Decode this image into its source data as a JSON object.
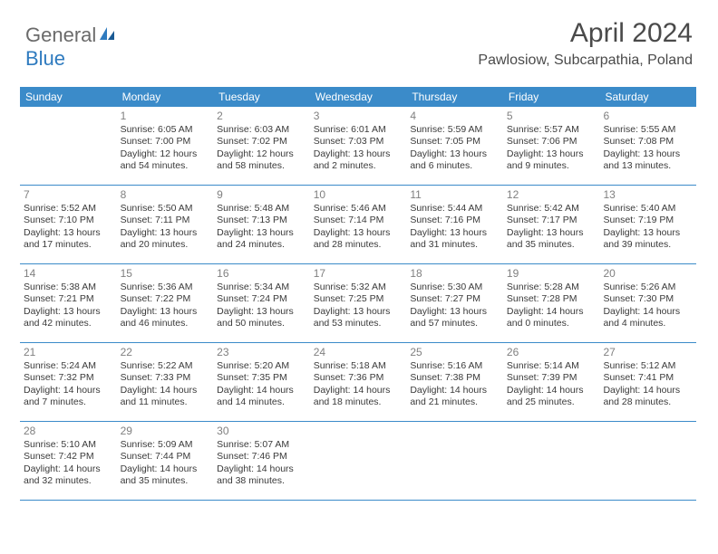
{
  "brand": {
    "word1": "General",
    "word2": "Blue"
  },
  "title": "April 2024",
  "location": "Pawlosiow, Subcarpathia, Poland",
  "colors": {
    "header_bg": "#3b8bc9",
    "header_fg": "#ffffff",
    "rule": "#3b8bc9",
    "text": "#3a3a3a",
    "daynum": "#808080",
    "brand_grey": "#6a6a6a",
    "brand_blue": "#2f7bbf",
    "page_bg": "#ffffff"
  },
  "dow": [
    "Sunday",
    "Monday",
    "Tuesday",
    "Wednesday",
    "Thursday",
    "Friday",
    "Saturday"
  ],
  "weeks": [
    [
      {
        "day": "",
        "lines": []
      },
      {
        "day": "1",
        "lines": [
          "Sunrise: 6:05 AM",
          "Sunset: 7:00 PM",
          "Daylight: 12 hours and 54 minutes."
        ]
      },
      {
        "day": "2",
        "lines": [
          "Sunrise: 6:03 AM",
          "Sunset: 7:02 PM",
          "Daylight: 12 hours and 58 minutes."
        ]
      },
      {
        "day": "3",
        "lines": [
          "Sunrise: 6:01 AM",
          "Sunset: 7:03 PM",
          "Daylight: 13 hours and 2 minutes."
        ]
      },
      {
        "day": "4",
        "lines": [
          "Sunrise: 5:59 AM",
          "Sunset: 7:05 PM",
          "Daylight: 13 hours and 6 minutes."
        ]
      },
      {
        "day": "5",
        "lines": [
          "Sunrise: 5:57 AM",
          "Sunset: 7:06 PM",
          "Daylight: 13 hours and 9 minutes."
        ]
      },
      {
        "day": "6",
        "lines": [
          "Sunrise: 5:55 AM",
          "Sunset: 7:08 PM",
          "Daylight: 13 hours and 13 minutes."
        ]
      }
    ],
    [
      {
        "day": "7",
        "lines": [
          "Sunrise: 5:52 AM",
          "Sunset: 7:10 PM",
          "Daylight: 13 hours and 17 minutes."
        ]
      },
      {
        "day": "8",
        "lines": [
          "Sunrise: 5:50 AM",
          "Sunset: 7:11 PM",
          "Daylight: 13 hours and 20 minutes."
        ]
      },
      {
        "day": "9",
        "lines": [
          "Sunrise: 5:48 AM",
          "Sunset: 7:13 PM",
          "Daylight: 13 hours and 24 minutes."
        ]
      },
      {
        "day": "10",
        "lines": [
          "Sunrise: 5:46 AM",
          "Sunset: 7:14 PM",
          "Daylight: 13 hours and 28 minutes."
        ]
      },
      {
        "day": "11",
        "lines": [
          "Sunrise: 5:44 AM",
          "Sunset: 7:16 PM",
          "Daylight: 13 hours and 31 minutes."
        ]
      },
      {
        "day": "12",
        "lines": [
          "Sunrise: 5:42 AM",
          "Sunset: 7:17 PM",
          "Daylight: 13 hours and 35 minutes."
        ]
      },
      {
        "day": "13",
        "lines": [
          "Sunrise: 5:40 AM",
          "Sunset: 7:19 PM",
          "Daylight: 13 hours and 39 minutes."
        ]
      }
    ],
    [
      {
        "day": "14",
        "lines": [
          "Sunrise: 5:38 AM",
          "Sunset: 7:21 PM",
          "Daylight: 13 hours and 42 minutes."
        ]
      },
      {
        "day": "15",
        "lines": [
          "Sunrise: 5:36 AM",
          "Sunset: 7:22 PM",
          "Daylight: 13 hours and 46 minutes."
        ]
      },
      {
        "day": "16",
        "lines": [
          "Sunrise: 5:34 AM",
          "Sunset: 7:24 PM",
          "Daylight: 13 hours and 50 minutes."
        ]
      },
      {
        "day": "17",
        "lines": [
          "Sunrise: 5:32 AM",
          "Sunset: 7:25 PM",
          "Daylight: 13 hours and 53 minutes."
        ]
      },
      {
        "day": "18",
        "lines": [
          "Sunrise: 5:30 AM",
          "Sunset: 7:27 PM",
          "Daylight: 13 hours and 57 minutes."
        ]
      },
      {
        "day": "19",
        "lines": [
          "Sunrise: 5:28 AM",
          "Sunset: 7:28 PM",
          "Daylight: 14 hours and 0 minutes."
        ]
      },
      {
        "day": "20",
        "lines": [
          "Sunrise: 5:26 AM",
          "Sunset: 7:30 PM",
          "Daylight: 14 hours and 4 minutes."
        ]
      }
    ],
    [
      {
        "day": "21",
        "lines": [
          "Sunrise: 5:24 AM",
          "Sunset: 7:32 PM",
          "Daylight: 14 hours and 7 minutes."
        ]
      },
      {
        "day": "22",
        "lines": [
          "Sunrise: 5:22 AM",
          "Sunset: 7:33 PM",
          "Daylight: 14 hours and 11 minutes."
        ]
      },
      {
        "day": "23",
        "lines": [
          "Sunrise: 5:20 AM",
          "Sunset: 7:35 PM",
          "Daylight: 14 hours and 14 minutes."
        ]
      },
      {
        "day": "24",
        "lines": [
          "Sunrise: 5:18 AM",
          "Sunset: 7:36 PM",
          "Daylight: 14 hours and 18 minutes."
        ]
      },
      {
        "day": "25",
        "lines": [
          "Sunrise: 5:16 AM",
          "Sunset: 7:38 PM",
          "Daylight: 14 hours and 21 minutes."
        ]
      },
      {
        "day": "26",
        "lines": [
          "Sunrise: 5:14 AM",
          "Sunset: 7:39 PM",
          "Daylight: 14 hours and 25 minutes."
        ]
      },
      {
        "day": "27",
        "lines": [
          "Sunrise: 5:12 AM",
          "Sunset: 7:41 PM",
          "Daylight: 14 hours and 28 minutes."
        ]
      }
    ],
    [
      {
        "day": "28",
        "lines": [
          "Sunrise: 5:10 AM",
          "Sunset: 7:42 PM",
          "Daylight: 14 hours and 32 minutes."
        ]
      },
      {
        "day": "29",
        "lines": [
          "Sunrise: 5:09 AM",
          "Sunset: 7:44 PM",
          "Daylight: 14 hours and 35 minutes."
        ]
      },
      {
        "day": "30",
        "lines": [
          "Sunrise: 5:07 AM",
          "Sunset: 7:46 PM",
          "Daylight: 14 hours and 38 minutes."
        ]
      },
      {
        "day": "",
        "lines": []
      },
      {
        "day": "",
        "lines": []
      },
      {
        "day": "",
        "lines": []
      },
      {
        "day": "",
        "lines": []
      }
    ]
  ]
}
